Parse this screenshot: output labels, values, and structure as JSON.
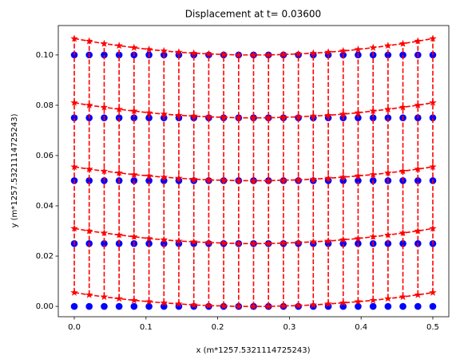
{
  "chart_data": {
    "type": "scatter",
    "title": "Displacement at t=  0.03600",
    "x_label": "x (m*1257.5321114725243)",
    "y_label": "y (m*1257.5321114725243)",
    "x": [
      0,
      0.0208,
      0.0417,
      0.0625,
      0.0833,
      0.1042,
      0.125,
      0.1458,
      0.1667,
      0.1875,
      0.2083,
      0.2292,
      0.25,
      0.2708,
      0.2917,
      0.3125,
      0.3333,
      0.3542,
      0.375,
      0.3958,
      0.4167,
      0.4375,
      0.4583,
      0.4792,
      0.5
    ],
    "series": [
      {
        "color": "#0000ff",
        "marker": "circle",
        "values": [
          0,
          0,
          0,
          0,
          0,
          0,
          0,
          0,
          0,
          0,
          0,
          0,
          0,
          0,
          0,
          0,
          0,
          0,
          0,
          0,
          0,
          0,
          0,
          0,
          0
        ]
      },
      {
        "color": "#0000ff",
        "marker": "circle",
        "values": [
          0.025,
          0.025,
          0.025,
          0.025,
          0.025,
          0.025,
          0.025,
          0.025,
          0.025,
          0.025,
          0.025,
          0.025,
          0.025,
          0.025,
          0.025,
          0.025,
          0.025,
          0.025,
          0.025,
          0.025,
          0.025,
          0.025,
          0.025,
          0.025,
          0.025
        ]
      },
      {
        "color": "#0000ff",
        "marker": "circle",
        "values": [
          0.05,
          0.05,
          0.05,
          0.05,
          0.05,
          0.05,
          0.05,
          0.05,
          0.05,
          0.05,
          0.05,
          0.05,
          0.05,
          0.05,
          0.05,
          0.05,
          0.05,
          0.05,
          0.05,
          0.05,
          0.05,
          0.05,
          0.05,
          0.05,
          0.05
        ]
      },
      {
        "color": "#0000ff",
        "marker": "circle",
        "values": [
          0.075,
          0.075,
          0.075,
          0.075,
          0.075,
          0.075,
          0.075,
          0.075,
          0.075,
          0.075,
          0.075,
          0.075,
          0.075,
          0.075,
          0.075,
          0.075,
          0.075,
          0.075,
          0.075,
          0.075,
          0.075,
          0.075,
          0.075,
          0.075,
          0.075
        ]
      },
      {
        "color": "#0000ff",
        "marker": "circle",
        "values": [
          0.1,
          0.1,
          0.1,
          0.1,
          0.1,
          0.1,
          0.1,
          0.1,
          0.1,
          0.1,
          0.1,
          0.1,
          0.1,
          0.1,
          0.1,
          0.1,
          0.1,
          0.1,
          0.1,
          0.1,
          0.1,
          0.1,
          0.1,
          0.1,
          0.1
        ]
      },
      {
        "color": "#ff0000",
        "marker": "star",
        "linestyle": "dashed",
        "values": [
          0.0055,
          0.0046,
          0.0038,
          0.0031,
          0.0024,
          0.0019,
          0.0014,
          0.001,
          0.0006,
          0.0003,
          0.0002,
          0,
          0,
          0,
          0.0002,
          0.0003,
          0.0006,
          0.001,
          0.0014,
          0.0019,
          0.0024,
          0.0031,
          0.0038,
          0.0046,
          0.0055
        ]
      },
      {
        "color": "#ff0000",
        "marker": "star",
        "linestyle": "dashed",
        "values": [
          0.031,
          0.03,
          0.0292,
          0.0284,
          0.0277,
          0.027,
          0.0265,
          0.026,
          0.0257,
          0.0254,
          0.0252,
          0.025,
          0.025,
          0.025,
          0.0252,
          0.0254,
          0.0257,
          0.026,
          0.0265,
          0.027,
          0.0277,
          0.0284,
          0.0292,
          0.03,
          0.031
        ]
      },
      {
        "color": "#ff0000",
        "marker": "star",
        "linestyle": "dashed",
        "values": [
          0.0555,
          0.0546,
          0.0538,
          0.0531,
          0.0524,
          0.0519,
          0.0514,
          0.051,
          0.0506,
          0.0503,
          0.0502,
          0.05,
          0.05,
          0.05,
          0.0502,
          0.0503,
          0.0506,
          0.051,
          0.0514,
          0.0519,
          0.0524,
          0.0531,
          0.0538,
          0.0546,
          0.0555
        ]
      },
      {
        "color": "#ff0000",
        "marker": "star",
        "linestyle": "dashed",
        "values": [
          0.081,
          0.08,
          0.0792,
          0.0784,
          0.0777,
          0.077,
          0.0765,
          0.076,
          0.0757,
          0.0754,
          0.0752,
          0.075,
          0.075,
          0.075,
          0.0752,
          0.0754,
          0.0757,
          0.076,
          0.0765,
          0.077,
          0.0777,
          0.0784,
          0.0792,
          0.08,
          0.081
        ]
      },
      {
        "color": "#ff0000",
        "marker": "star",
        "linestyle": "dashed",
        "values": [
          0.1065,
          0.1055,
          0.1045,
          0.1037,
          0.1029,
          0.1022,
          0.1016,
          0.1011,
          0.1007,
          0.1004,
          0.1002,
          0.1,
          0.1,
          0.1,
          0.1002,
          0.1004,
          0.1007,
          0.1011,
          0.1016,
          0.1022,
          0.1029,
          0.1037,
          0.1045,
          0.1055,
          0.1065
        ]
      }
    ],
    "connect_columns": true,
    "xlim": [
      -0.0223,
      0.5223
    ],
    "ylim": [
      -0.0041,
      0.1117
    ],
    "xticks": [
      {
        "value": 0,
        "label": "0.0"
      },
      {
        "value": 0.1,
        "label": "0.1"
      },
      {
        "value": 0.2,
        "label": "0.2"
      },
      {
        "value": 0.3,
        "label": "0.3"
      },
      {
        "value": 0.4,
        "label": "0.4"
      },
      {
        "value": 0.5,
        "label": "0.5"
      }
    ],
    "yticks": [
      {
        "value": 0,
        "label": "0.00"
      },
      {
        "value": 0.02,
        "label": "0.02"
      },
      {
        "value": 0.04,
        "label": "0.04"
      },
      {
        "value": 0.06,
        "label": "0.06"
      },
      {
        "value": 0.08,
        "label": "0.08"
      },
      {
        "value": 0.1,
        "label": "0.10"
      }
    ],
    "grid": false
  }
}
